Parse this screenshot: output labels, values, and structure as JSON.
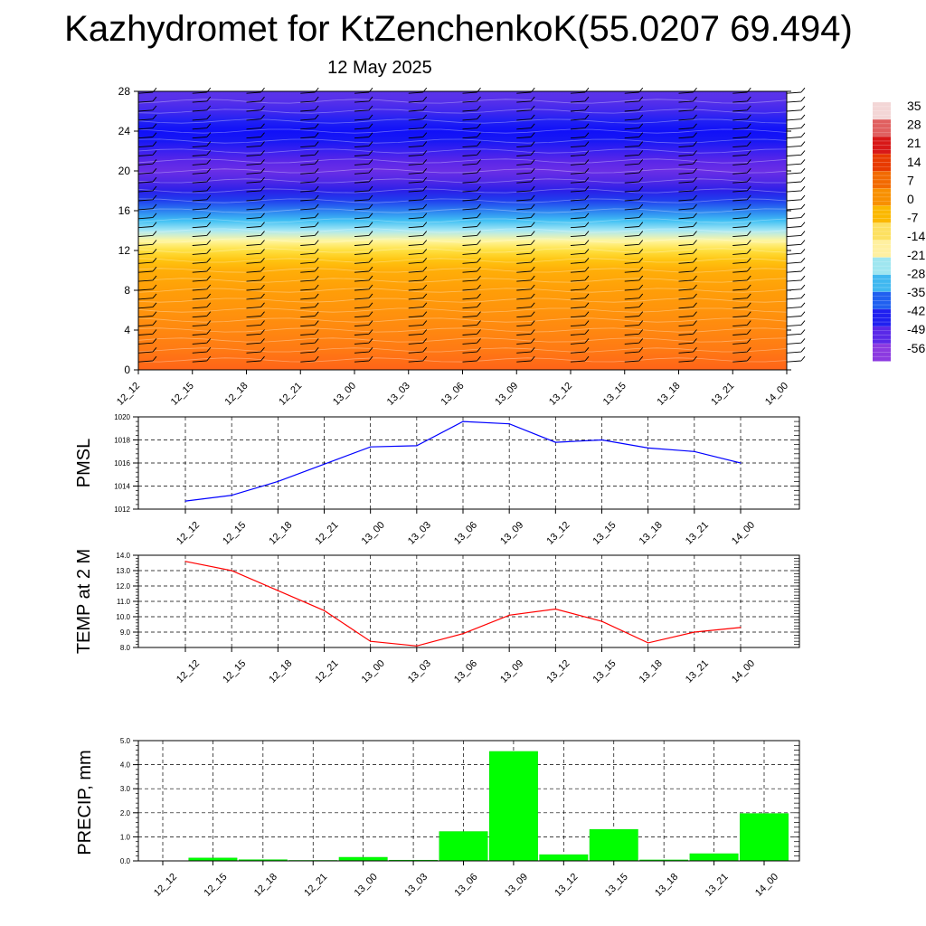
{
  "title": "Kazhydromet for KtZenchenkoK(55.0207 69.494)",
  "subtitle": "12 May 2025",
  "chart_data": [
    {
      "type": "heatmap",
      "name": "cross-section",
      "y_ticks": [
        "0",
        "4",
        "8",
        "12",
        "16",
        "20",
        "24",
        "28"
      ],
      "ylim": [
        0,
        28
      ],
      "x_ticks": [
        "12_12",
        "12_15",
        "12_18",
        "12_21",
        "13_00",
        "13_03",
        "13_06",
        "13_09",
        "13_12",
        "13_15",
        "13_18",
        "13_21",
        "14_00"
      ],
      "colorbar_labels": [
        "35",
        "28",
        "21",
        "14",
        "7",
        "0",
        "-7",
        "-14",
        "-21",
        "-28",
        "-35",
        "-42",
        "-49",
        "-56"
      ],
      "colorbar_colors": [
        "#f3d6d6",
        "#e06060",
        "#d81818",
        "#e83a00",
        "#f26a00",
        "#f89000",
        "#fbb800",
        "#fde060",
        "#fff0a0",
        "#9fe6f0",
        "#40b8f0",
        "#2060f0",
        "#2020f0",
        "#5a28e8",
        "#8c3ae0"
      ],
      "profile": {
        "levels": [
          0,
          2,
          4,
          6,
          8,
          10,
          11,
          12,
          13,
          14,
          15,
          16,
          17,
          18,
          19,
          20,
          21,
          22,
          23,
          24,
          25,
          26,
          27,
          28
        ],
        "colors": [
          "#ff6418",
          "#ff7a14",
          "#ff8810",
          "#ff940c",
          "#ff9e08",
          "#ffae08",
          "#ffc410",
          "#ffe040",
          "#fff6a0",
          "#a8e8f4",
          "#40c0f4",
          "#2c80f0",
          "#2040ee",
          "#2a20e8",
          "#5028e6",
          "#6a2ee6",
          "#5a26e8",
          "#3a20f0",
          "#1818f4",
          "#1010f8",
          "#2020f4",
          "#4028ee",
          "#5630ea",
          "#5a34ea"
        ]
      },
      "wind_barbs": "columns of wind barbs at each time step"
    },
    {
      "type": "line",
      "ylabel": "PMSL",
      "x": [
        "12_12",
        "12_15",
        "12_18",
        "12_21",
        "13_00",
        "13_03",
        "13_06",
        "13_09",
        "13_12",
        "13_15",
        "13_18",
        "13_21",
        "14_00"
      ],
      "values": [
        1012.7,
        1013.2,
        1014.4,
        1015.9,
        1017.4,
        1017.5,
        1019.6,
        1019.4,
        1017.8,
        1018.0,
        1017.3,
        1017.0,
        1016.0
      ],
      "y_ticks": [
        "1012",
        "1014",
        "1016",
        "1018",
        "1020"
      ],
      "ylim": [
        1012,
        1020
      ],
      "color": "#0000ff",
      "grid": true
    },
    {
      "type": "line",
      "ylabel": "TEMP at 2 M",
      "x": [
        "12_12",
        "12_15",
        "12_18",
        "12_21",
        "13_00",
        "13_03",
        "13_06",
        "13_09",
        "13_12",
        "13_15",
        "13_18",
        "13_21",
        "14_00"
      ],
      "values": [
        13.6,
        13.0,
        11.7,
        10.4,
        8.4,
        8.1,
        8.9,
        10.1,
        10.5,
        9.7,
        8.3,
        9.0,
        9.3
      ],
      "y_ticks": [
        "8.0",
        "9.0",
        "10.0",
        "11.0",
        "12.0",
        "13.0",
        "14.0"
      ],
      "ylim": [
        8.0,
        14.0
      ],
      "color": "#ff0000",
      "grid": true
    },
    {
      "type": "bar",
      "ylabel": "PRECIP, mm",
      "categories": [
        "12_12",
        "12_15",
        "12_18",
        "12_21",
        "13_00",
        "13_03",
        "13_06",
        "13_09",
        "13_12",
        "13_15",
        "13_18",
        "13_21",
        "14_00"
      ],
      "values": [
        0.0,
        0.12,
        0.05,
        0.02,
        0.15,
        0.03,
        1.22,
        4.55,
        0.26,
        1.31,
        0.04,
        0.3,
        1.97
      ],
      "y_ticks": [
        "0.0",
        "1.0",
        "2.0",
        "3.0",
        "4.0",
        "5.0"
      ],
      "ylim": [
        0.0,
        5.0
      ],
      "color": "#00ff00",
      "grid": true
    }
  ]
}
